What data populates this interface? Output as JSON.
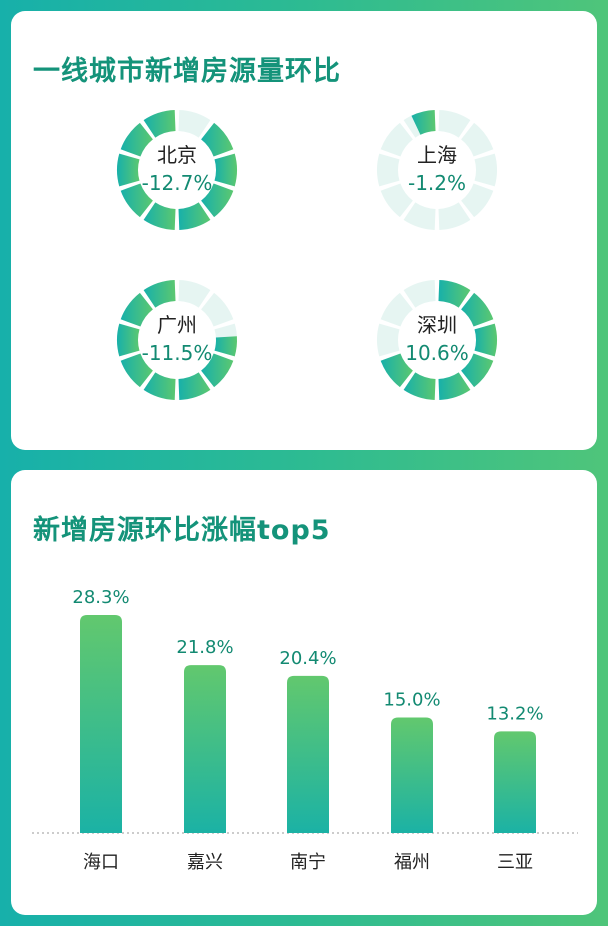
{
  "section1": {
    "title": "一线城市新增房源量环比",
    "donuts": [
      {
        "city": "北京",
        "value_label": "-12.7%",
        "value": -12.7,
        "fill_fraction": 0.9
      },
      {
        "city": "上海",
        "value_label": "-1.2%",
        "value": -1.2,
        "fill_fraction": 0.07
      },
      {
        "city": "广州",
        "value_label": "-11.5%",
        "value": -11.5,
        "fill_fraction": 0.76
      },
      {
        "city": "深圳",
        "value_label": "10.6%",
        "value": 10.6,
        "fill_fraction": 0.7
      }
    ]
  },
  "chart_data": {
    "type": "bar",
    "title": "新增房源环比涨幅top5",
    "categories": [
      "海口",
      "嘉兴",
      "南宁",
      "福州",
      "三亚"
    ],
    "values": [
      28.3,
      21.8,
      20.4,
      15.0,
      13.2
    ],
    "value_labels": [
      "28.3%",
      "21.8%",
      "20.4%",
      "15.0%",
      "13.2%"
    ],
    "ylim": [
      0,
      30
    ],
    "grid": false
  },
  "colors": {
    "teal": "#17b0aa",
    "green": "#5cc870",
    "empty": "#e6f5f2",
    "title": "#14937a",
    "value": "#138a72"
  }
}
